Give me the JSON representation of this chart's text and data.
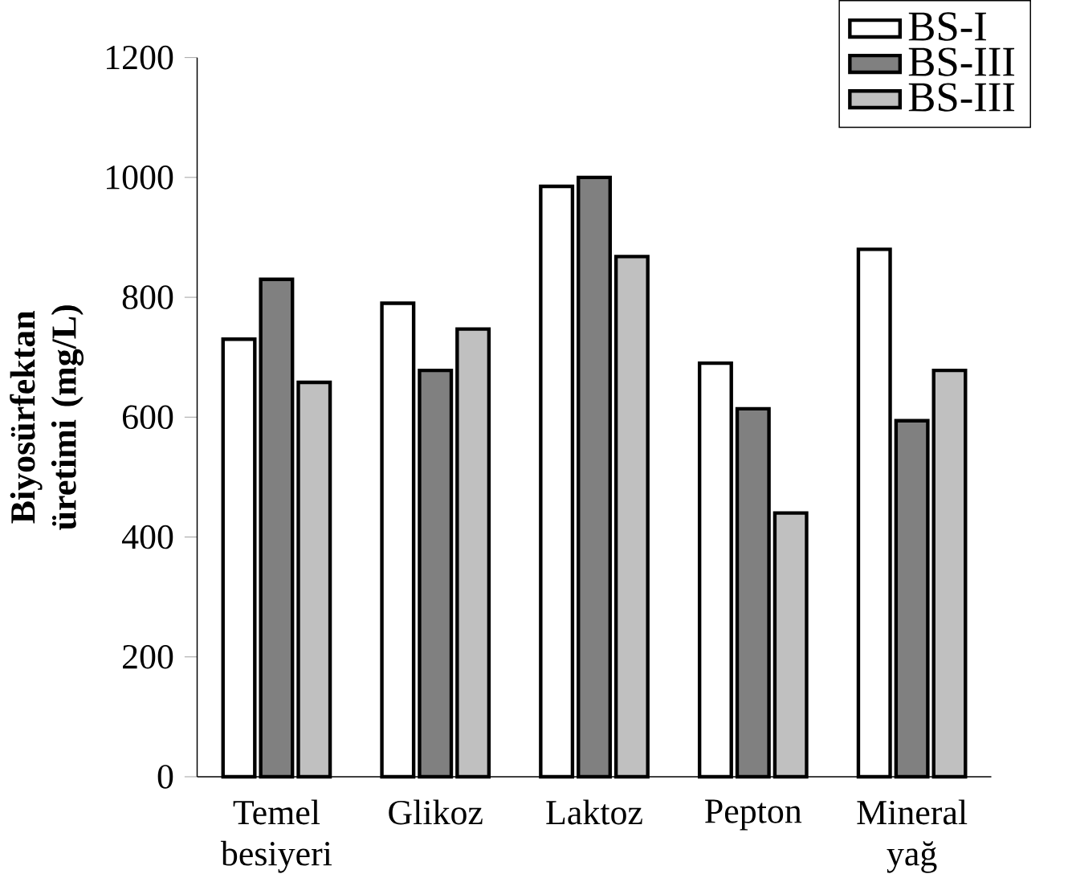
{
  "chart_data": {
    "type": "bar",
    "ylabel": "Biyosürfektan üretimi (mg/L)",
    "categories": [
      "Temel besiyeri",
      "Glikoz",
      "Laktoz",
      "Pepton",
      "Mineral yağ"
    ],
    "series": [
      {
        "name": "BS-I",
        "color": "#ffffff",
        "values": [
          730,
          790,
          985,
          690,
          880
        ]
      },
      {
        "name": "BS-III",
        "color": "#808080",
        "values": [
          830,
          678,
          1000,
          614,
          594
        ]
      },
      {
        "name": "BS-III",
        "color": "#c0c0c0",
        "values": [
          658,
          747,
          868,
          440,
          678
        ]
      }
    ],
    "ylim": [
      0,
      1200
    ],
    "yticks": [
      0,
      200,
      400,
      600,
      800,
      1000,
      1200
    ],
    "grid": false,
    "legend": "top right"
  }
}
